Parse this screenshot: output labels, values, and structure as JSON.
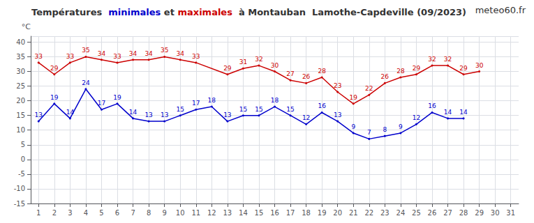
{
  "chart_data": {
    "type": "line",
    "title": "Températures  minimales et maximales  à Montauban  Lamothe-Capdeville (09/2023)",
    "y_label": "°C",
    "annotations": [
      "meteo60.fr"
    ],
    "x": [
      1,
      2,
      3,
      4,
      5,
      6,
      7,
      8,
      9,
      10,
      11,
      12,
      13,
      14,
      15,
      16,
      17,
      18,
      19,
      20,
      21,
      22,
      23,
      24,
      25,
      26,
      27,
      28,
      29,
      30,
      31
    ],
    "series": [
      {
        "name": "maximales",
        "color": "#cc0000",
        "values": [
          33,
          29,
          33,
          35,
          34,
          33,
          34,
          34,
          35,
          34,
          33,
          null,
          29,
          31,
          32,
          30,
          27,
          26,
          28,
          23,
          19,
          22,
          26,
          28,
          29,
          32,
          32,
          29,
          30,
          null,
          null
        ]
      },
      {
        "name": "minimales",
        "color": "#0000cc",
        "values": [
          13,
          19,
          14,
          24,
          17,
          19,
          14,
          13,
          13,
          15,
          17,
          18,
          13,
          15,
          15,
          18,
          15,
          12,
          16,
          13,
          9,
          7,
          8,
          9,
          12,
          16,
          14,
          14,
          null,
          null,
          null
        ]
      }
    ],
    "xlim": [
      0.5,
      31.5
    ],
    "xticks": [
      1,
      2,
      3,
      4,
      5,
      6,
      7,
      8,
      9,
      10,
      11,
      12,
      13,
      14,
      15,
      16,
      17,
      18,
      19,
      20,
      21,
      22,
      23,
      24,
      25,
      26,
      27,
      28,
      29,
      30,
      31
    ],
    "ylim": [
      -15,
      42
    ],
    "yticks": [
      -15,
      -10,
      -5,
      0,
      5,
      10,
      15,
      20,
      25,
      30,
      35,
      40
    ],
    "grid": true,
    "data_labels": true
  }
}
